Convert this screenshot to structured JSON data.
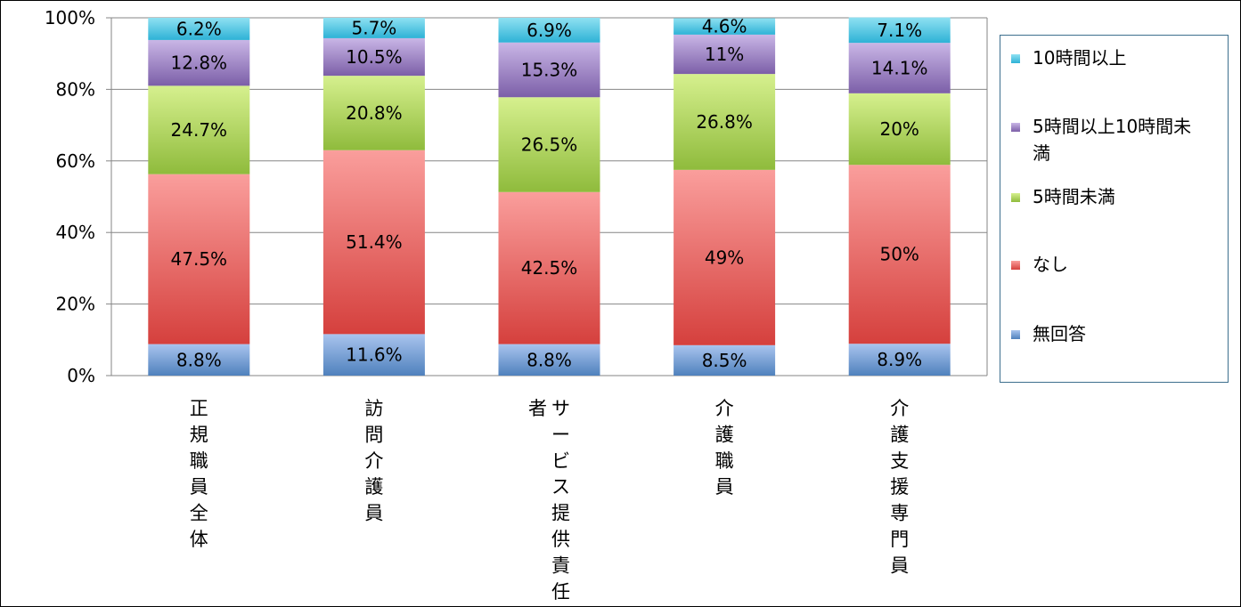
{
  "chart_data": {
    "type": "bar",
    "stacked": true,
    "percent": true,
    "categories": [
      "正規職員全体",
      "訪問介護員",
      "サービス提供責任者",
      "介護職員",
      "介護支援専門員"
    ],
    "category_label_lines": [
      [
        "正規職員全体"
      ],
      [
        "訪問介護員"
      ],
      [
        "サービス提供責任",
        "者"
      ],
      [
        "介護職員"
      ],
      [
        "介護支援専門員"
      ]
    ],
    "series": [
      {
        "name": "無回答",
        "values": [
          8.8,
          11.6,
          8.8,
          8.5,
          8.9
        ],
        "labels": [
          "8.8%",
          "11.6%",
          "8.8%",
          "8.5%",
          "8.9%"
        ],
        "color": "#4f81bd",
        "light": "#a9c4ee"
      },
      {
        "name": "なし",
        "values": [
          47.5,
          51.4,
          42.5,
          49,
          50
        ],
        "labels": [
          "47.5%",
          "51.4%",
          "42.5%",
          "49%",
          "50%"
        ],
        "color": "#d5403d",
        "light": "#fa9e9c"
      },
      {
        "name": "5時間未満",
        "values": [
          24.7,
          20.8,
          26.5,
          26.8,
          20
        ],
        "labels": [
          "24.7%",
          "20.8%",
          "26.5%",
          "26.8%",
          "20%"
        ],
        "color": "#8fbb3c",
        "light": "#d6f08e"
      },
      {
        "name": "5時間以上10時間未満",
        "values": [
          12.8,
          10.5,
          15.3,
          11,
          14.1
        ],
        "labels": [
          "12.8%",
          "10.5%",
          "15.3%",
          "11%",
          "14.1%"
        ],
        "color": "#7c5fa8",
        "light": "#c9b6e6"
      },
      {
        "name": "10時間以上",
        "values": [
          6.2,
          5.7,
          6.9,
          4.6,
          7.1
        ],
        "labels": [
          "6.2%",
          "5.7%",
          "6.9%",
          "4.6%",
          "7.1%"
        ],
        "color": "#2eb2d6",
        "light": "#8fe1f2"
      }
    ],
    "legend_order": [
      "10時間以上",
      "5時間以上10時間未満",
      "5時間未満",
      "なし",
      "無回答"
    ],
    "legend_lines": [
      [
        "10時間以上"
      ],
      [
        "5時間以上10時間未",
        "満"
      ],
      [
        "5時間未満"
      ],
      [
        "なし"
      ],
      [
        "無回答"
      ]
    ],
    "yticks": [
      "0%",
      "20%",
      "40%",
      "60%",
      "80%",
      "100%"
    ],
    "ylim": [
      0,
      100
    ],
    "grid": true,
    "legend_position": "right"
  }
}
